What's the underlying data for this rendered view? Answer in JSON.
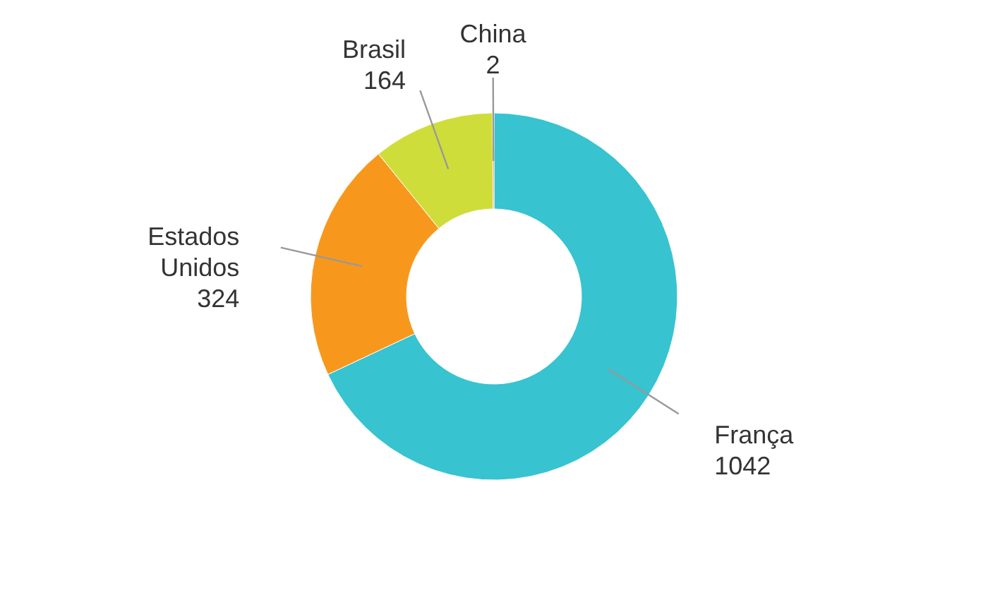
{
  "chart_data": {
    "type": "donut",
    "categories": [
      "França",
      "Estados Unidos",
      "Brasil",
      "China"
    ],
    "values": [
      1042,
      324,
      164,
      2
    ],
    "colors": [
      "#37c3cf",
      "#f7981d",
      "#cfdd3a",
      "#d9452b"
    ],
    "data_labels": true
  }
}
